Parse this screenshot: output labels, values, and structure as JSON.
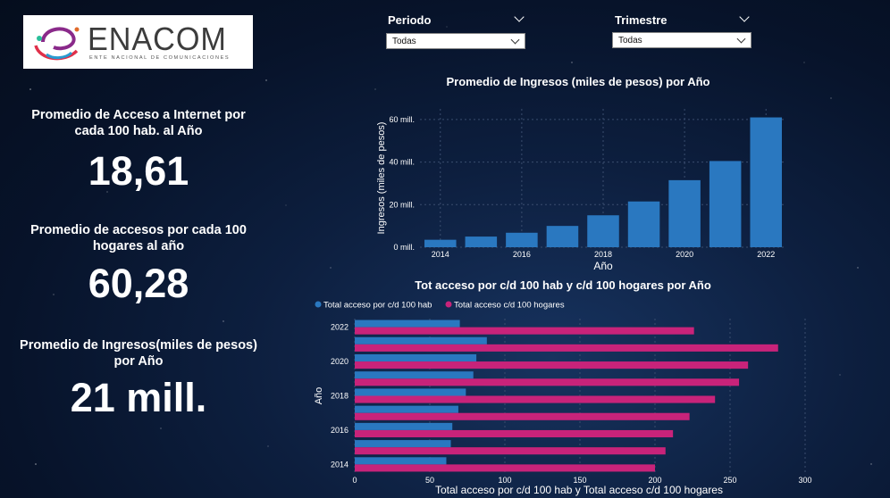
{
  "logo": {
    "word": "ENACOM",
    "subtitle": "ENTE NACIONAL DE COMUNICACIONES"
  },
  "kpis": [
    {
      "title": "Promedio de Acceso a Internet por cada 100 hab. al Año",
      "value": "18,61"
    },
    {
      "title": "Promedio de accesos por cada 100 hogares al año",
      "value": "60,28"
    },
    {
      "title": "Promedio de Ingresos(miles de pesos) por Año",
      "value": "21 mill."
    }
  ],
  "filters": [
    {
      "label": "Periodo",
      "selected": "Todas"
    },
    {
      "label": "Trimestre",
      "selected": "Todas"
    }
  ],
  "colors": {
    "bar_blue": "#2a78c0",
    "bar_pink": "#c8237a"
  },
  "chart_data": [
    {
      "type": "bar",
      "title": "Promedio de Ingresos (miles de pesos) por Año",
      "xlabel": "Año",
      "ylabel": "Ingresos (miles de pesos)",
      "x": [
        2014,
        2015,
        2016,
        2017,
        2018,
        2019,
        2020,
        2021,
        2022
      ],
      "x_tick_labels": [
        "2014",
        "2016",
        "2018",
        "2020",
        "2022"
      ],
      "values": [
        3.5,
        5,
        6.8,
        10,
        15,
        21.5,
        31.5,
        40.5,
        61
      ],
      "y_tick_labels": [
        "0 mill.",
        "20 mill.",
        "40 mill.",
        "60 mill."
      ],
      "ylim": [
        0,
        65
      ],
      "grid": true
    },
    {
      "type": "bar",
      "orientation": "horizontal",
      "title": "Tot acceso por c/d 100 hab y c/d 100 hogares por Año",
      "xlabel": "Total acceso por c/d 100 hab y Total acceso c/d 100 hogares",
      "ylabel": "Año",
      "categories": [
        2022,
        2021,
        2020,
        2019,
        2018,
        2017,
        2016,
        2015,
        2014
      ],
      "y_tick_labels": [
        "2022",
        "2020",
        "2018",
        "2016",
        "2014"
      ],
      "series": [
        {
          "name": "Total acceso por c/d 100 hab",
          "values": [
            70,
            88,
            81,
            79,
            74,
            69,
            65,
            64,
            61
          ]
        },
        {
          "name": "Total acceso c/d 100 hogares",
          "values": [
            226,
            282,
            262,
            256,
            240,
            223,
            212,
            207,
            200
          ]
        }
      ],
      "x_tick_labels": [
        "0",
        "50",
        "100",
        "150",
        "200",
        "250",
        "300"
      ],
      "xlim": [
        0,
        300
      ],
      "legend": "top-left",
      "grid": true
    }
  ]
}
